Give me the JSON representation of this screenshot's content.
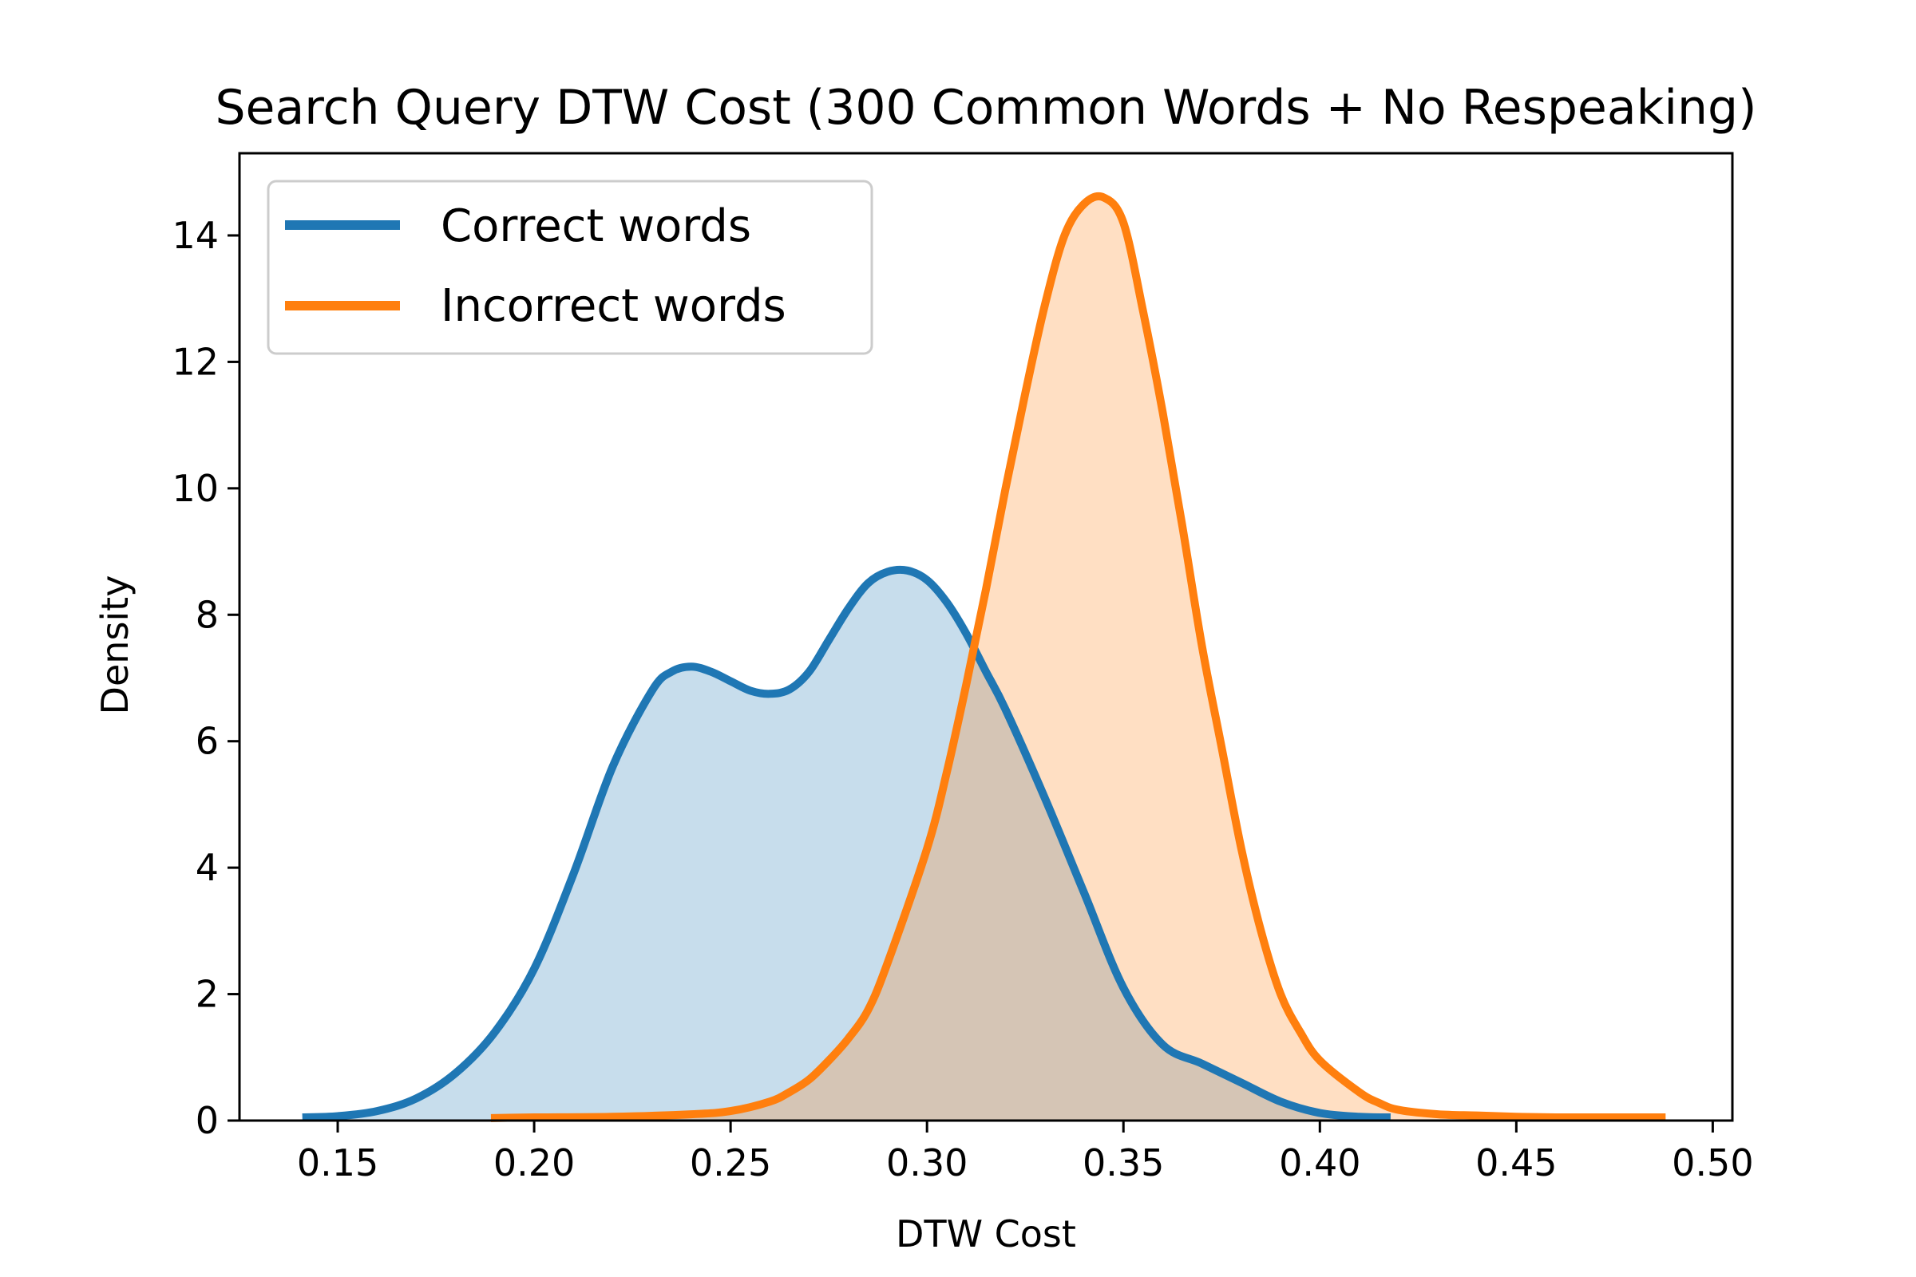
{
  "chart_data": {
    "type": "area",
    "title": "Search Query DTW Cost  (300 Common Words + No Respeaking)",
    "xlabel": "DTW Cost",
    "ylabel": "Density",
    "xlim": [
      0.125,
      0.505
    ],
    "ylim": [
      0,
      15.3
    ],
    "xticks": [
      0.15,
      0.2,
      0.25,
      0.3,
      0.35,
      0.4,
      0.45,
      0.5
    ],
    "xtick_labels": [
      "0.15",
      "0.20",
      "0.25",
      "0.30",
      "0.35",
      "0.40",
      "0.45",
      "0.50"
    ],
    "yticks": [
      0,
      2,
      4,
      6,
      8,
      10,
      12,
      14
    ],
    "ytick_labels": [
      "0",
      "2",
      "4",
      "6",
      "8",
      "10",
      "12",
      "14"
    ],
    "grid": false,
    "legend_position": "top-left",
    "series": [
      {
        "name": "Correct words",
        "color": "#1f77b4",
        "fill_color": "#c6dcec",
        "x": [
          0.141,
          0.15,
          0.16,
          0.17,
          0.18,
          0.19,
          0.2,
          0.21,
          0.22,
          0.23,
          0.235,
          0.24,
          0.245,
          0.25,
          0.255,
          0.26,
          0.265,
          0.27,
          0.275,
          0.28,
          0.285,
          0.29,
          0.295,
          0.3,
          0.305,
          0.31,
          0.315,
          0.32,
          0.33,
          0.34,
          0.35,
          0.36,
          0.37,
          0.38,
          0.39,
          0.4,
          0.41,
          0.418
        ],
        "y": [
          0.05,
          0.07,
          0.15,
          0.35,
          0.75,
          1.4,
          2.4,
          3.9,
          5.6,
          6.8,
          7.1,
          7.18,
          7.1,
          6.95,
          6.8,
          6.75,
          6.82,
          7.1,
          7.6,
          8.1,
          8.5,
          8.68,
          8.7,
          8.55,
          8.2,
          7.7,
          7.1,
          6.5,
          5.1,
          3.6,
          2.1,
          1.2,
          0.9,
          0.6,
          0.3,
          0.12,
          0.06,
          0.05
        ]
      },
      {
        "name": "Incorrect words",
        "color": "#ff7f0e",
        "fill_color": "#fdddbf",
        "x": [
          0.189,
          0.2,
          0.22,
          0.24,
          0.25,
          0.26,
          0.265,
          0.27,
          0.275,
          0.28,
          0.285,
          0.29,
          0.3,
          0.305,
          0.31,
          0.315,
          0.32,
          0.325,
          0.33,
          0.335,
          0.34,
          0.345,
          0.35,
          0.355,
          0.36,
          0.365,
          0.37,
          0.375,
          0.38,
          0.385,
          0.39,
          0.395,
          0.4,
          0.41,
          0.415,
          0.42,
          0.43,
          0.44,
          0.45,
          0.46,
          0.47,
          0.48,
          0.488
        ],
        "y": [
          0.04,
          0.05,
          0.06,
          0.1,
          0.15,
          0.3,
          0.45,
          0.65,
          0.95,
          1.3,
          1.75,
          2.5,
          4.3,
          5.5,
          6.9,
          8.4,
          10.0,
          11.5,
          12.9,
          14.0,
          14.5,
          14.6,
          14.2,
          12.8,
          11.2,
          9.4,
          7.5,
          5.9,
          4.3,
          3.0,
          2.0,
          1.4,
          0.95,
          0.45,
          0.28,
          0.17,
          0.1,
          0.08,
          0.06,
          0.05,
          0.05,
          0.05,
          0.05
        ]
      }
    ]
  }
}
